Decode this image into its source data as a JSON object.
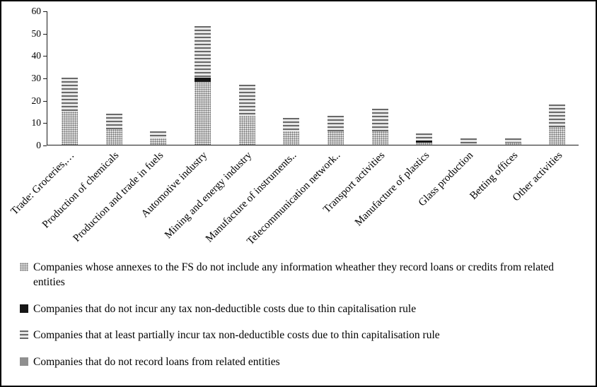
{
  "figure": {
    "background": "#ffffff",
    "border_color": "#000000",
    "text_color": "#000000"
  },
  "chart_data": {
    "type": "bar",
    "stacked": true,
    "title": "",
    "xlabel": "",
    "ylabel": "",
    "grid": false,
    "legend_position": "bottom",
    "y_axis": {
      "min": 0,
      "max": 60,
      "tick_step": 10,
      "ticks": [
        0,
        10,
        20,
        30,
        40,
        50,
        60
      ]
    },
    "categories": [
      "Trade: Groceries,…",
      "Production of chemicals",
      "Production and trade in fuels",
      "Automotive industry",
      "Mining and energy industry",
      "Manufacture of instruments..",
      "Telecommunication network..",
      "Transport activities",
      "Manufacture of plastics",
      "Glass production",
      "Betting offices",
      "Other activities"
    ],
    "series": [
      {
        "name": "Companies whose annexes to the FS do not include any information wheather they record loans or credits from related entities",
        "pattern": "dots",
        "color": "#dedede",
        "values": [
          15,
          7,
          3,
          28,
          13,
          6,
          6,
          6,
          1,
          0,
          1,
          8
        ]
      },
      {
        "name": "Companies that do not incur any tax non-deductible costs due to thin capitalisation rule",
        "pattern": "solid-black",
        "color": "#161616",
        "values": [
          0,
          0,
          0,
          2,
          0,
          0,
          0,
          0,
          1,
          0,
          0,
          0
        ]
      },
      {
        "name": "Companies that at least partially incur tax non-deductible costs due to thin capitalisation rule",
        "pattern": "h-stripes",
        "color": "#808080",
        "values": [
          15,
          7,
          3,
          23,
          14,
          6,
          7,
          10,
          3,
          3,
          2,
          10
        ]
      },
      {
        "name": "Companies that do not record loans from related entities",
        "pattern": "solid-gray",
        "color": "#8f8f8f",
        "values": [
          0,
          0,
          0,
          0,
          0,
          0,
          0,
          0,
          0,
          0,
          0,
          0
        ]
      }
    ]
  }
}
